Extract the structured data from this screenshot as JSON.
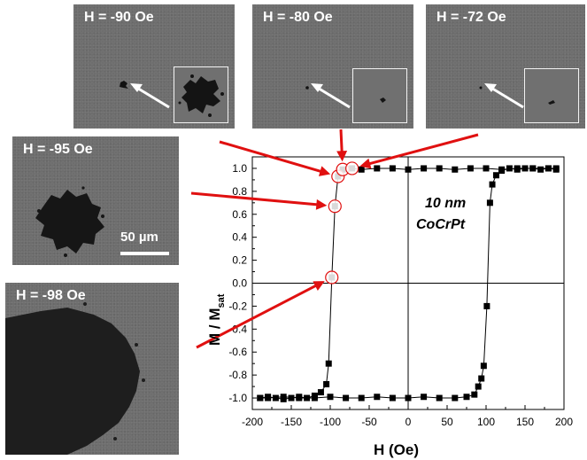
{
  "panels": [
    {
      "label": "H = -90 Oe"
    },
    {
      "label": "H = -80 Oe"
    },
    {
      "label": "H = -72 Oe"
    },
    {
      "label": "H = -95 Oe"
    },
    {
      "label": "H = -98 Oe"
    }
  ],
  "scale_bar": "50 µm",
  "annotation": {
    "line1": "10 nm",
    "line2": "CoCrPt"
  },
  "colors": {
    "arrow": "#e01010",
    "highlight": "#e01010",
    "micrograph": "#6e6e6e",
    "markers": "#000000"
  },
  "chart_data": {
    "type": "line",
    "xlabel": "H (Oe)",
    "ylabel": "M / M",
    "ylabel_sub": "sat",
    "xlim": [
      -200,
      200
    ],
    "ylim": [
      -1.1,
      1.1
    ],
    "x_ticks": [
      -200,
      -150,
      -100,
      -50,
      0,
      50,
      100,
      150,
      200
    ],
    "y_ticks": [
      "1.0",
      "0.8",
      "0.6",
      "0.4",
      "0.2",
      "0.0",
      "-0.2",
      "-0.4",
      "-0.6",
      "-0.8",
      "-1.0"
    ],
    "y_tick_values": [
      1.0,
      0.8,
      0.6,
      0.4,
      0.2,
      0.0,
      -0.2,
      -0.4,
      -0.6,
      -0.8,
      -1.0
    ],
    "series": [
      {
        "points": [
          [
            -190,
            -1.0
          ],
          [
            -180,
            -0.99
          ],
          [
            -170,
            -1.0
          ],
          [
            -160,
            -1.01
          ],
          [
            -150,
            -1.0
          ],
          [
            -140,
            -0.99
          ],
          [
            -130,
            -1.0
          ],
          [
            -120,
            -0.98
          ],
          [
            -112,
            -0.95
          ],
          [
            -105,
            -0.88
          ],
          [
            -102,
            -0.7
          ],
          [
            -98,
            0.05
          ],
          [
            -94,
            0.67
          ],
          [
            -90,
            0.93
          ],
          [
            -84,
            0.99
          ],
          [
            -72,
            1.0
          ],
          [
            -60,
            0.99
          ],
          [
            -40,
            1.0
          ],
          [
            -20,
            1.0
          ],
          [
            0,
            0.99
          ],
          [
            20,
            1.0
          ],
          [
            40,
            1.0
          ],
          [
            60,
            0.99
          ],
          [
            80,
            1.0
          ],
          [
            100,
            1.0
          ],
          [
            120,
            0.99
          ],
          [
            140,
            1.0
          ],
          [
            160,
            1.0
          ],
          [
            180,
            1.0
          ],
          [
            190,
            0.99
          ]
        ]
      },
      {
        "points": [
          [
            190,
            1.0
          ],
          [
            180,
            1.0
          ],
          [
            170,
            0.99
          ],
          [
            160,
            1.0
          ],
          [
            150,
            1.0
          ],
          [
            140,
            0.99
          ],
          [
            130,
            1.0
          ],
          [
            120,
            0.98
          ],
          [
            113,
            0.94
          ],
          [
            108,
            0.86
          ],
          [
            105,
            0.7
          ],
          [
            101,
            -0.2
          ],
          [
            97,
            -0.72
          ],
          [
            94,
            -0.83
          ],
          [
            90,
            -0.9
          ],
          [
            85,
            -0.97
          ],
          [
            75,
            -0.99
          ],
          [
            60,
            -1.0
          ],
          [
            40,
            -1.0
          ],
          [
            20,
            -0.99
          ],
          [
            0,
            -1.0
          ],
          [
            -20,
            -1.0
          ],
          [
            -40,
            -0.99
          ],
          [
            -60,
            -1.0
          ],
          [
            -80,
            -1.0
          ],
          [
            -100,
            -0.99
          ],
          [
            -120,
            -1.0
          ],
          [
            -140,
            -1.0
          ],
          [
            -160,
            -0.99
          ],
          [
            -180,
            -1.0
          ],
          [
            -190,
            -1.0
          ]
        ]
      }
    ],
    "highlighted_points": [
      [
        -98,
        0.05
      ],
      [
        -94,
        0.67
      ],
      [
        -90,
        0.93
      ],
      [
        -84,
        0.99
      ],
      [
        -72,
        1.0
      ]
    ],
    "grid": false
  }
}
